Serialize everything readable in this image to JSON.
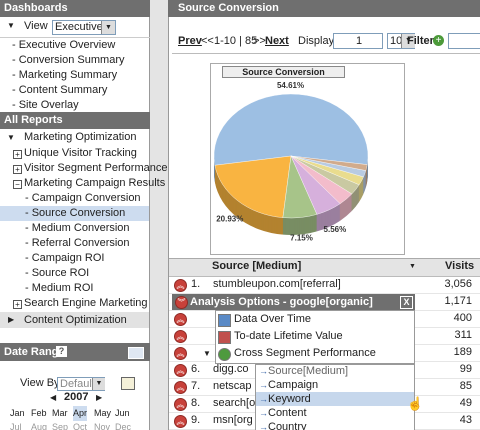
{
  "dashboards": {
    "title": "Dashboards",
    "view_label": "View",
    "view_value": "Executive",
    "items": [
      "- Executive Overview",
      "- Conversion Summary",
      "- Marketing Summary",
      "- Content Summary",
      "- Site Overlay"
    ]
  },
  "reports": {
    "title": "All Reports",
    "section": "Marketing Optimization",
    "items": [
      "Unique Visitor Tracking",
      "Visitor Segment Performance",
      "Marketing Campaign Results"
    ],
    "campaign_items": [
      "- Campaign Conversion",
      "- Source Conversion",
      "- Medium Conversion",
      "- Referral Conversion",
      "- Campaign ROI",
      "- Source ROI",
      "- Medium ROI"
    ],
    "after": "Search Engine Marketing",
    "next_section": "Content Optimization"
  },
  "date_range": {
    "title": "Date Range",
    "help": "?",
    "view_by_label": "View By",
    "view_by_value": "Default",
    "year": 2007,
    "months": [
      "Jan",
      "Feb",
      "Mar",
      "Apr",
      "May",
      "Jun",
      "Jul",
      "Aug",
      "Sep",
      "Oct",
      "Nov",
      "Dec"
    ]
  },
  "main": {
    "title": "Source Conversion",
    "pager": {
      "prev": "Prev",
      "first": "<<",
      "range": "1-10 | 85",
      "last": ">>",
      "next": "Next",
      "display_label": "Display",
      "page": 1,
      "per_page": 10,
      "filter_label": "Filter"
    },
    "chart": {
      "type": "pie",
      "title": "Source Conversion",
      "values": [
        54.61,
        20.93,
        7.15,
        5.56,
        3.5,
        2.8,
        2.2,
        1.7,
        1.55
      ],
      "value_labels": [
        "54.61%",
        "20.93%",
        "7.15%",
        "5.56%",
        null,
        null,
        null,
        null,
        null
      ],
      "colors": [
        "#9dbfe3",
        "#f9b441",
        "#a7c489",
        "#d6b0dc",
        "#f3bccb",
        "#c9c9a2",
        "#e9dc8e",
        "#b8cbe2",
        "#d1ab8c"
      ]
    },
    "table": {
      "columns": [
        "Source [Medium]",
        "Visits"
      ],
      "rows": [
        {
          "rank": "1.",
          "source": "stumbleupon.com[referral]",
          "visits": "3,056"
        },
        {
          "visits": "1,171"
        },
        {
          "visits": "400"
        },
        {
          "visits": "311"
        },
        {
          "visits": "189"
        },
        {
          "rank": "6.",
          "source": "digg.co",
          "visits": "99"
        },
        {
          "rank": "7.",
          "source": "netscap",
          "visits": "85"
        },
        {
          "rank": "8.",
          "source": "search[o",
          "visits": "49"
        },
        {
          "rank": "9.",
          "source": "msn[org",
          "visits": "43"
        }
      ]
    }
  },
  "popup": {
    "title": "Analysis Options - google[organic]",
    "close": "X",
    "items": [
      "Data Over Time",
      "To-date Lifetime Value",
      "Cross Segment Performance"
    ],
    "submenu": [
      "Source[Medium]",
      "Campaign",
      "Keyword",
      "Content",
      "Country"
    ]
  }
}
